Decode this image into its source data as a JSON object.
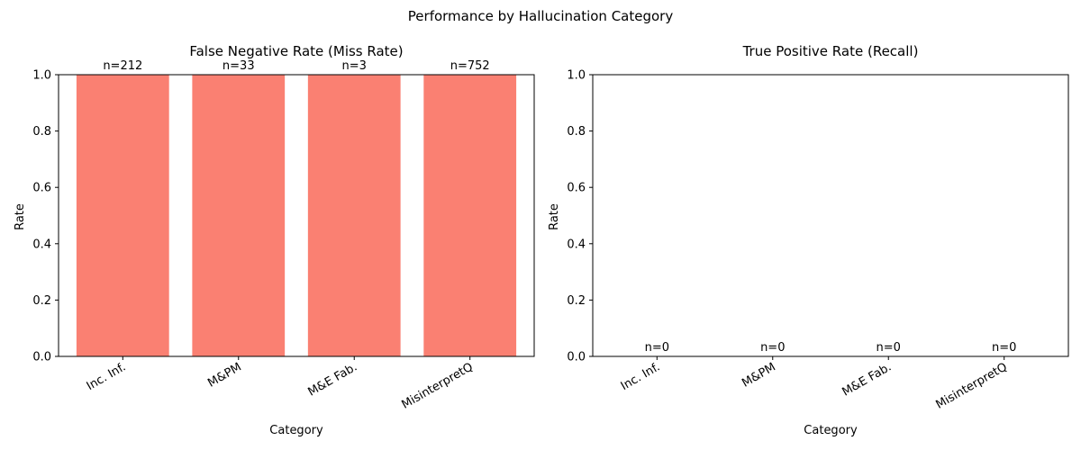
{
  "suptitle": "Performance by Hallucination Category",
  "chart_data": [
    {
      "type": "bar",
      "title": "False Negative Rate (Miss Rate)",
      "xlabel": "Category",
      "ylabel": "Rate",
      "categories": [
        "Inc. Inf.",
        "M&PM",
        "M&E Fab.",
        "MisinterpretQ"
      ],
      "values": [
        1.0,
        1.0,
        1.0,
        1.0
      ],
      "annotations": [
        "n=212",
        "n=33",
        "n=3",
        "n=752"
      ],
      "ylim": [
        0,
        1.0
      ],
      "yticks": [
        "0.0",
        "0.2",
        "0.4",
        "0.6",
        "0.8",
        "1.0"
      ],
      "bar_color": "#fa8072",
      "grid": false
    },
    {
      "type": "bar",
      "title": "True Positive Rate (Recall)",
      "xlabel": "Category",
      "ylabel": "Rate",
      "categories": [
        "Inc. Inf.",
        "M&PM",
        "M&E Fab.",
        "MisinterpretQ"
      ],
      "values": [
        0,
        0,
        0,
        0
      ],
      "annotations": [
        "n=0",
        "n=0",
        "n=0",
        "n=0"
      ],
      "ylim": [
        0,
        1.0
      ],
      "yticks": [
        "0.0",
        "0.2",
        "0.4",
        "0.6",
        "0.8",
        "1.0"
      ],
      "bar_color": "#90ee90",
      "grid": false
    }
  ]
}
